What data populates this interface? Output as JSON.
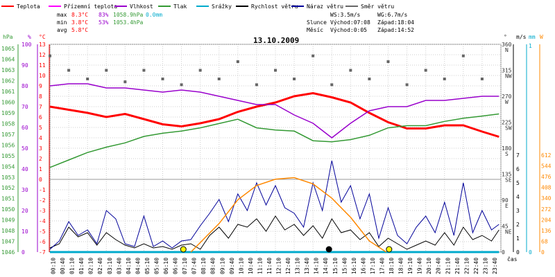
{
  "legend": [
    {
      "label": "Teplota",
      "color": "#ff0000"
    },
    {
      "label": "Přízemní teplota",
      "color": "#ff00ff"
    },
    {
      "label": "Vlhkost",
      "color": "#9900cc"
    },
    {
      "label": "Tlak",
      "color": "#339933"
    },
    {
      "label": "Srážky",
      "color": "#00aacc"
    },
    {
      "label": "Rychlost větru",
      "color": "#000000"
    },
    {
      "label": "Náraz větru",
      "color": "#000099"
    },
    {
      "label": "Směr větru",
      "color": "#666666"
    }
  ],
  "stats": {
    "max": {
      "label": "max",
      "temp": "8.3°C",
      "hum": "83%",
      "press": "1058.9hPa",
      "rain": "0.0mm"
    },
    "min": {
      "label": "min",
      "temp": "3.8°C",
      "hum": "53%",
      "press": "1053.4hPa"
    },
    "avg": {
      "label": "avg",
      "temp": "5.8°C"
    }
  },
  "info": {
    "ws": "WS:3.5m/s",
    "wg": "WG:6.7m/s",
    "sun_label": "Slunce",
    "sun_rise": "Východ:07:08",
    "sun_set": "Západ:18:04",
    "moon_label": "Měsíc",
    "moon_rise": "Východ:0:05",
    "moon_set": "Západ:14:52"
  },
  "title": "13.10.2009",
  "axes": {
    "hpa_title": "hPa",
    "pct_title": "%",
    "temp_title": "°C",
    "deg_title": "°",
    "ms_title": "m/s",
    "mm_title": "mm",
    "w_title": "W",
    "x_title": "čas",
    "hpa_ticks": [
      "1065",
      "1064",
      "1063",
      "1062",
      "1061",
      "1060",
      "1059",
      "1058",
      "1057",
      "1056",
      "1055",
      "1054",
      "1053",
      "1052",
      "1051",
      "1050",
      "1049",
      "1048",
      "1047",
      "1046"
    ],
    "pct_ticks": [
      "100",
      "90",
      "80",
      "70",
      "60",
      "50",
      "40",
      "30",
      "20",
      "10",
      "0"
    ],
    "temp_ticks": [
      "13",
      "12",
      "11",
      "10",
      "9",
      "8",
      "7",
      "6",
      "5",
      "4",
      "3",
      "2",
      "1",
      "0",
      "-1",
      "-2",
      "-3",
      "-4",
      "-5",
      "-6",
      "-7"
    ],
    "deg_ticks": [
      "360",
      "315",
      "270",
      "225",
      "180",
      "135",
      "90",
      "45",
      "0"
    ],
    "dir_ticks": [
      "N",
      "NW",
      "W",
      "SW",
      "S",
      "SE",
      "E",
      "NE",
      ""
    ],
    "ms_ticks": [
      "7",
      "6",
      "5",
      "4",
      "3",
      "2",
      "1",
      "0"
    ],
    "mm_ticks": [
      "1",
      "0"
    ],
    "w_ticks": [
      "612",
      "544",
      "476",
      "408",
      "340",
      "272",
      "204",
      "136",
      "68",
      "0"
    ],
    "time_ticks": [
      "00:10",
      "00:40",
      "01:10",
      "01:40",
      "02:10",
      "02:40",
      "03:10",
      "03:40",
      "04:10",
      "04:40",
      "05:10",
      "05:40",
      "06:10",
      "06:40",
      "07:10",
      "07:40",
      "08:10",
      "08:40",
      "09:10",
      "09:40",
      "10:10",
      "10:40",
      "11:10",
      "11:40",
      "12:10",
      "12:40",
      "13:10",
      "13:40",
      "14:10",
      "14:40",
      "15:10",
      "15:40",
      "16:10",
      "16:40",
      "17:10",
      "17:40",
      "18:10",
      "18:40",
      "19:10",
      "19:40",
      "20:10",
      "20:40",
      "21:10",
      "21:40",
      "22:10",
      "22:40",
      "23:10",
      "23:40"
    ]
  },
  "chart_data": {
    "type": "line",
    "title": "13.10.2009",
    "x_unit": "hours",
    "series": [
      {
        "name": "Teplota",
        "unit": "°C",
        "color": "#ff0000",
        "points": [
          [
            0,
            7
          ],
          [
            1,
            6.7
          ],
          [
            2,
            6.4
          ],
          [
            3,
            6.0
          ],
          [
            4,
            6.3
          ],
          [
            5,
            5.8
          ],
          [
            6,
            5.3
          ],
          [
            7,
            5.1
          ],
          [
            8,
            5.4
          ],
          [
            9,
            5.8
          ],
          [
            10,
            6.5
          ],
          [
            11,
            7.0
          ],
          [
            12,
            7.4
          ],
          [
            13,
            8.0
          ],
          [
            14,
            8.3
          ],
          [
            15,
            7.9
          ],
          [
            16,
            7.4
          ],
          [
            17,
            6.4
          ],
          [
            18,
            5.5
          ],
          [
            19,
            4.9
          ],
          [
            20,
            4.9
          ],
          [
            21,
            5.2
          ],
          [
            22,
            5.2
          ],
          [
            23,
            4.6
          ],
          [
            23.9,
            4.1
          ]
        ]
      },
      {
        "name": "Vlhkost",
        "unit": "%",
        "color": "#9900cc",
        "points": [
          [
            0,
            80
          ],
          [
            1,
            81
          ],
          [
            2,
            81
          ],
          [
            3,
            79
          ],
          [
            4,
            79
          ],
          [
            5,
            78
          ],
          [
            6,
            77
          ],
          [
            7,
            78
          ],
          [
            8,
            77
          ],
          [
            9,
            75
          ],
          [
            10,
            73
          ],
          [
            11,
            71
          ],
          [
            12,
            71
          ],
          [
            13,
            66
          ],
          [
            14,
            62
          ],
          [
            15,
            55
          ],
          [
            16,
            62
          ],
          [
            17,
            68
          ],
          [
            18,
            70
          ],
          [
            19,
            70
          ],
          [
            20,
            73
          ],
          [
            21,
            73
          ],
          [
            22,
            74
          ],
          [
            23,
            75
          ],
          [
            23.9,
            75
          ]
        ]
      },
      {
        "name": "Tlak",
        "unit": "hPa",
        "color": "#339933",
        "points": [
          [
            0,
            1053.9
          ],
          [
            1,
            1054.6
          ],
          [
            2,
            1055.3
          ],
          [
            3,
            1055.8
          ],
          [
            4,
            1056.2
          ],
          [
            5,
            1056.8
          ],
          [
            6,
            1057.1
          ],
          [
            7,
            1057.3
          ],
          [
            8,
            1057.6
          ],
          [
            9,
            1058.0
          ],
          [
            10,
            1058.4
          ],
          [
            11,
            1057.6
          ],
          [
            12,
            1057.4
          ],
          [
            13,
            1057.3
          ],
          [
            14,
            1056.4
          ],
          [
            15,
            1056.3
          ],
          [
            16,
            1056.5
          ],
          [
            17,
            1056.9
          ],
          [
            18,
            1057.6
          ],
          [
            19,
            1057.8
          ],
          [
            20,
            1057.8
          ],
          [
            21,
            1058.2
          ],
          [
            22,
            1058.5
          ],
          [
            23,
            1058.7
          ],
          [
            23.9,
            1058.9
          ]
        ]
      },
      {
        "name": "Rychlost větru",
        "unit": "m/s",
        "color": "#000000",
        "points": [
          [
            0,
            0.3
          ],
          [
            0.5,
            0.6
          ],
          [
            1,
            1.8
          ],
          [
            1.5,
            1.1
          ],
          [
            2,
            1.4
          ],
          [
            2.5,
            0.5
          ],
          [
            3,
            1.4
          ],
          [
            3.5,
            0.9
          ],
          [
            4,
            0.5
          ],
          [
            4.5,
            0.3
          ],
          [
            5,
            0.6
          ],
          [
            5.5,
            0.3
          ],
          [
            6,
            0.4
          ],
          [
            6.5,
            0.2
          ],
          [
            7,
            0.5
          ],
          [
            7.5,
            0.6
          ],
          [
            8,
            0.2
          ],
          [
            8.5,
            1.2
          ],
          [
            9,
            1.8
          ],
          [
            9.5,
            1.0
          ],
          [
            10,
            2.0
          ],
          [
            10.5,
            1.8
          ],
          [
            11,
            2.4
          ],
          [
            11.5,
            1.5
          ],
          [
            12,
            2.6
          ],
          [
            12.5,
            1.6
          ],
          [
            13,
            2.0
          ],
          [
            13.5,
            1.2
          ],
          [
            14,
            1.9
          ],
          [
            14.5,
            1.0
          ],
          [
            15,
            2.4
          ],
          [
            15.5,
            1.4
          ],
          [
            16,
            1.6
          ],
          [
            16.5,
            0.9
          ],
          [
            17,
            1.4
          ],
          [
            17.5,
            0.4
          ],
          [
            18,
            1.0
          ],
          [
            18.5,
            0.6
          ],
          [
            19,
            0.2
          ],
          [
            19.5,
            0.5
          ],
          [
            20,
            0.8
          ],
          [
            20.5,
            0.5
          ],
          [
            21,
            1.4
          ],
          [
            21.5,
            0.5
          ],
          [
            22,
            1.8
          ],
          [
            22.5,
            0.9
          ],
          [
            23,
            1.2
          ],
          [
            23.5,
            0.8
          ],
          [
            23.9,
            1.6
          ]
        ]
      },
      {
        "name": "Náraz větru",
        "unit": "m/s",
        "color": "#000099",
        "points": [
          [
            0,
            0.2
          ],
          [
            0.5,
            0.8
          ],
          [
            1,
            2.2
          ],
          [
            1.5,
            1.2
          ],
          [
            2,
            1.6
          ],
          [
            2.5,
            0.6
          ],
          [
            3,
            3.0
          ],
          [
            3.5,
            2.4
          ],
          [
            4,
            0.6
          ],
          [
            4.5,
            0.4
          ],
          [
            5,
            2.6
          ],
          [
            5.5,
            0.4
          ],
          [
            6,
            0.8
          ],
          [
            6.5,
            0.3
          ],
          [
            7,
            0.8
          ],
          [
            7.5,
            0.9
          ],
          [
            8,
            1.9
          ],
          [
            8.5,
            2.8
          ],
          [
            9,
            3.8
          ],
          [
            9.5,
            2.2
          ],
          [
            10,
            4.2
          ],
          [
            10.5,
            3.0
          ],
          [
            11,
            5.0
          ],
          [
            11.5,
            3.4
          ],
          [
            12,
            4.8
          ],
          [
            12.5,
            3.2
          ],
          [
            13,
            2.8
          ],
          [
            13.5,
            1.8
          ],
          [
            14,
            5.0
          ],
          [
            14.5,
            3.0
          ],
          [
            15,
            6.6
          ],
          [
            15.5,
            3.6
          ],
          [
            16,
            4.8
          ],
          [
            16.5,
            2.4
          ],
          [
            17,
            4.2
          ],
          [
            17.5,
            1.0
          ],
          [
            18,
            3.2
          ],
          [
            18.5,
            1.2
          ],
          [
            19,
            0.6
          ],
          [
            19.5,
            1.8
          ],
          [
            20,
            2.6
          ],
          [
            20.5,
            1.4
          ],
          [
            21,
            3.6
          ],
          [
            21.5,
            1.2
          ],
          [
            22,
            5.0
          ],
          [
            22.5,
            1.4
          ],
          [
            23,
            3.0
          ],
          [
            23.5,
            1.6
          ],
          [
            23.9,
            2.0
          ]
        ]
      },
      {
        "name": "Směr větru",
        "unit": "°",
        "color": "#666666",
        "points": [
          [
            0,
            340
          ],
          [
            1,
            315
          ],
          [
            2,
            300
          ],
          [
            3,
            315
          ],
          [
            4,
            295
          ],
          [
            5,
            315
          ],
          [
            6,
            300
          ],
          [
            7,
            290
          ],
          [
            8,
            315
          ],
          [
            9,
            300
          ],
          [
            10,
            330
          ],
          [
            11,
            290
          ],
          [
            12,
            315
          ],
          [
            13,
            300
          ],
          [
            14,
            340
          ],
          [
            15,
            290
          ],
          [
            16,
            315
          ],
          [
            17,
            300
          ],
          [
            18,
            330
          ],
          [
            19,
            290
          ],
          [
            20,
            315
          ],
          [
            21,
            300
          ],
          [
            22,
            340
          ],
          [
            23,
            300
          ]
        ]
      },
      {
        "name": "Srážky",
        "unit": "mm",
        "color": "#00aacc",
        "points": [
          [
            0,
            0
          ],
          [
            23.9,
            0
          ]
        ]
      }
    ],
    "solar": {
      "unit": "W",
      "color": "#ff8800",
      "points": [
        [
          7.5,
          0
        ],
        [
          9,
          180
        ],
        [
          10,
          330
        ],
        [
          11,
          420
        ],
        [
          12,
          460
        ],
        [
          13,
          470
        ],
        [
          14,
          430
        ],
        [
          15,
          340
        ],
        [
          16,
          220
        ],
        [
          17,
          70
        ],
        [
          17.9,
          0
        ]
      ]
    },
    "markers": [
      {
        "time": 7.1,
        "label": "sunrise",
        "color": "#ffff00"
      },
      {
        "time": 18.05,
        "label": "sunset",
        "color": "#ffff00"
      },
      {
        "time": 14.85,
        "label": "moonset",
        "color": "#000000"
      }
    ]
  }
}
